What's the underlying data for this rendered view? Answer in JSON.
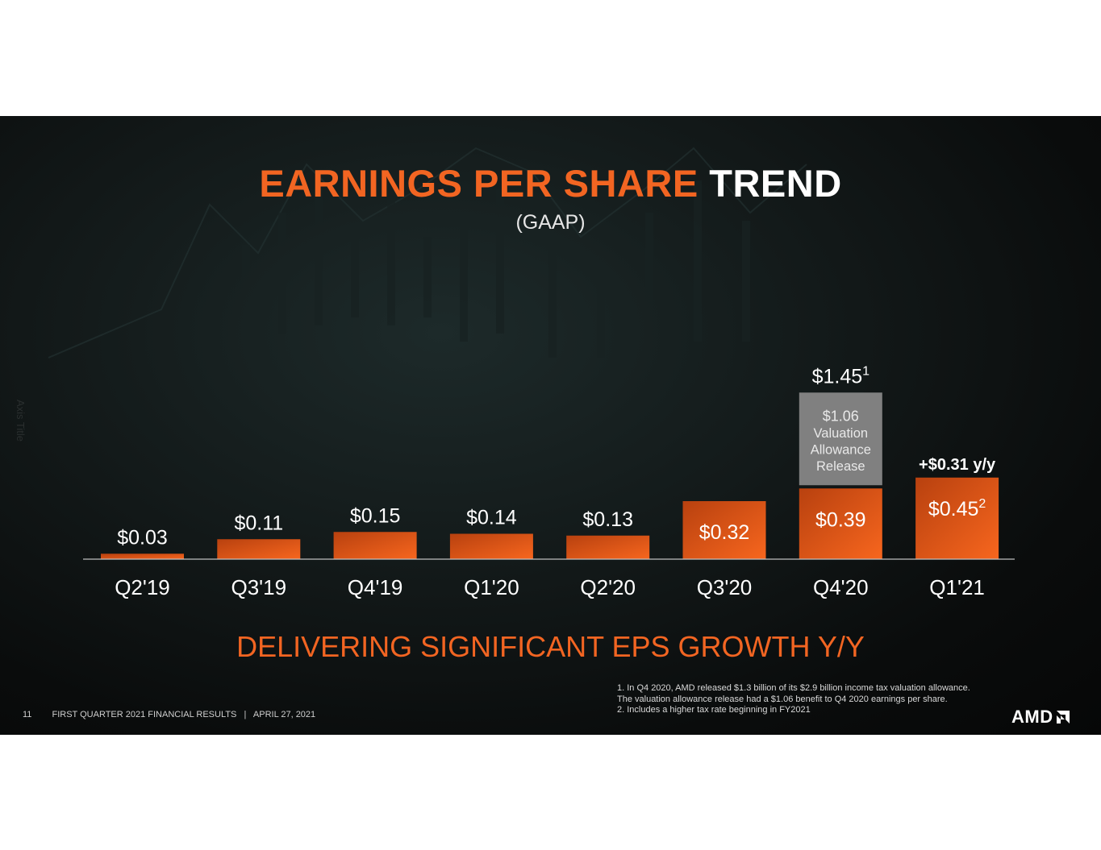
{
  "slide": {
    "title_orange": "EARNINGS PER SHARE",
    "title_white": "TREND",
    "subtitle": "(GAAP)",
    "axis_title": "Axis Title",
    "tagline": "DELIVERING SIGNIFICANT EPS GROWTH Y/Y",
    "footnotes": [
      "1. In Q4 2020, AMD released $1.3 billion of its $2.9 billion income tax valuation allowance.",
      "The valuation allowance release had a $1.06 benefit to Q4 2020 earnings per share.",
      "2. Includes a higher tax rate beginning in FY2021"
    ],
    "footer": {
      "page_number": "11",
      "text": "FIRST QUARTER 2021 FINANCIAL RESULTS",
      "separator": "|",
      "date": "APRIL 27, 2021"
    },
    "logo": "AMD",
    "colors": {
      "accent": "#f26522",
      "bar_top": "#b8410f",
      "bar_bottom": "#f7661e",
      "stack_gray": "#808080"
    }
  },
  "chart_data": {
    "type": "bar",
    "stacked": true,
    "categories": [
      "Q2'19",
      "Q3'19",
      "Q4'19",
      "Q1'20",
      "Q2'20",
      "Q3'20",
      "Q4'20",
      "Q1'21"
    ],
    "series": [
      {
        "values": [
          0.03,
          0.11,
          0.15,
          0.14,
          0.13,
          0.32,
          0.39,
          0.45
        ]
      },
      {
        "values": [
          0,
          0,
          0,
          0,
          0,
          0,
          1.06,
          0
        ]
      }
    ],
    "value_labels": [
      "$0.03",
      "$0.11",
      "$0.15",
      "$0.14",
      "$0.13",
      "$0.32",
      "$0.39",
      "$0.45"
    ],
    "value_label_superscripts": [
      "",
      "",
      "",
      "",
      "",
      "",
      "",
      "2"
    ],
    "stack_label_lines": [
      "$1.06",
      "Valuation",
      "Allowance",
      "Release"
    ],
    "total_label": {
      "category_index": 6,
      "text": "$1.45",
      "superscript": "1"
    },
    "callout": {
      "category_index": 7,
      "text": "+$0.31 y/y"
    },
    "ylim": [
      0,
      1.6
    ],
    "grid": false,
    "legend": "none"
  }
}
